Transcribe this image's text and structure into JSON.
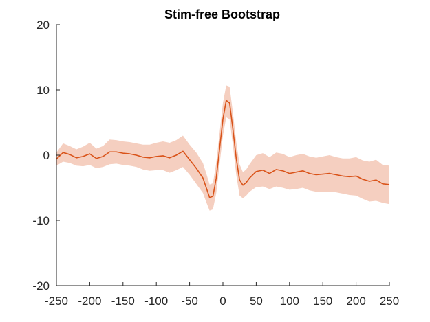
{
  "chart_data": {
    "type": "line",
    "title": "Stim-free Bootstrap",
    "xlabel": "",
    "ylabel": "",
    "xlim": [
      -250,
      250
    ],
    "ylim": [
      -20,
      20
    ],
    "xticks": [
      -250,
      -200,
      -150,
      -100,
      -50,
      0,
      50,
      100,
      150,
      200,
      250
    ],
    "xtick_labels": [
      "-250",
      "-200",
      "-150",
      "-100",
      "-50",
      "0",
      "50",
      "100",
      "150",
      "200",
      "250"
    ],
    "yticks": [
      -20,
      -10,
      0,
      10,
      20
    ],
    "ytick_labels": [
      "-20",
      "-10",
      "0",
      "10",
      "20"
    ],
    "grid": false,
    "legend": "none",
    "series": [
      {
        "color": "#d95319",
        "band_color": "#f5cfc0",
        "x": [
          -250,
          -240,
          -230,
          -220,
          -210,
          -200,
          -190,
          -180,
          -170,
          -160,
          -150,
          -140,
          -130,
          -120,
          -110,
          -100,
          -90,
          -80,
          -70,
          -60,
          -50,
          -40,
          -30,
          -25,
          -20,
          -15,
          -10,
          -5,
          0,
          5,
          10,
          15,
          20,
          25,
          30,
          35,
          40,
          50,
          60,
          70,
          80,
          90,
          100,
          110,
          120,
          130,
          140,
          150,
          160,
          170,
          180,
          190,
          200,
          210,
          220,
          230,
          240,
          250
        ],
        "mean": [
          -0.6,
          0.4,
          0.1,
          -0.4,
          -0.2,
          0.2,
          -0.5,
          -0.2,
          0.5,
          0.5,
          0.3,
          0.2,
          0.0,
          -0.3,
          -0.4,
          -0.2,
          -0.1,
          -0.4,
          0.0,
          0.6,
          -0.7,
          -2.0,
          -3.5,
          -5.0,
          -6.5,
          -6.3,
          -3.5,
          1.0,
          5.5,
          8.4,
          8.0,
          4.0,
          -0.5,
          -3.8,
          -4.6,
          -4.2,
          -3.5,
          -2.5,
          -2.3,
          -2.8,
          -2.2,
          -2.4,
          -2.8,
          -2.6,
          -2.4,
          -2.8,
          -3.0,
          -2.9,
          -2.8,
          -3.0,
          -3.2,
          -3.3,
          -3.2,
          -3.7,
          -4.0,
          -3.8,
          -4.4,
          -4.5
        ],
        "lower": [
          -1.6,
          -1.0,
          -1.2,
          -1.6,
          -1.7,
          -1.5,
          -2.0,
          -1.8,
          -1.4,
          -1.3,
          -1.5,
          -1.6,
          -1.8,
          -2.2,
          -2.4,
          -2.3,
          -2.3,
          -2.7,
          -2.3,
          -1.8,
          -3.0,
          -4.4,
          -5.8,
          -7.2,
          -8.5,
          -8.3,
          -5.8,
          -1.4,
          3.0,
          5.8,
          5.5,
          1.5,
          -3.0,
          -6.2,
          -6.6,
          -6.2,
          -5.6,
          -4.9,
          -4.8,
          -5.2,
          -4.8,
          -5.0,
          -5.3,
          -5.2,
          -5.0,
          -5.4,
          -5.6,
          -5.6,
          -5.6,
          -5.7,
          -5.9,
          -6.1,
          -6.2,
          -6.7,
          -7.1,
          -7.0,
          -7.3,
          -7.5
        ],
        "upper": [
          0.4,
          1.8,
          1.4,
          0.9,
          1.3,
          1.9,
          1.0,
          1.4,
          2.4,
          2.3,
          2.1,
          2.0,
          1.8,
          1.6,
          1.6,
          1.9,
          2.1,
          1.9,
          2.3,
          3.0,
          1.6,
          0.4,
          -1.2,
          -2.8,
          -4.5,
          -4.3,
          -1.2,
          3.4,
          8.0,
          10.7,
          10.5,
          6.5,
          2.0,
          -1.4,
          -2.6,
          -2.2,
          -1.4,
          0.0,
          0.3,
          -0.3,
          0.4,
          0.2,
          -0.3,
          0.0,
          0.2,
          -0.2,
          -0.4,
          -0.2,
          0.0,
          -0.3,
          -0.5,
          -0.5,
          -0.3,
          -0.8,
          -1.0,
          -0.7,
          -1.5,
          -1.6
        ]
      }
    ]
  }
}
